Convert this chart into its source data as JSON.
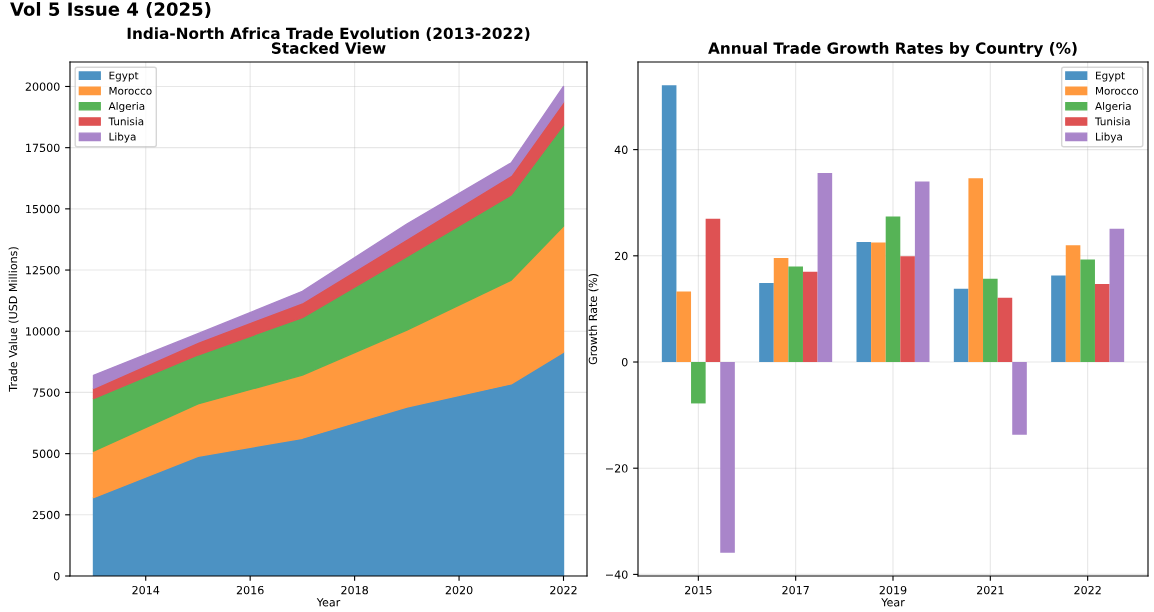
{
  "chart_data": [
    {
      "type": "area",
      "stacked": true,
      "title": "India-North Africa Trade Evolution (2013-2022)\nStacked View",
      "xlabel": "Year",
      "ylabel": "Trade Value (USD Millions)",
      "x": [
        2013,
        2015,
        2017,
        2019,
        2021,
        2022
      ],
      "series": [
        {
          "name": "Egypt",
          "color": "#4c92c3",
          "values": [
            3200,
            4890,
            5630,
            6900,
            7850,
            9150
          ]
        },
        {
          "name": "Morocco",
          "color": "#ff993e",
          "values": [
            1900,
            2140,
            2580,
            3150,
            4240,
            5150
          ]
        },
        {
          "name": "Algeria",
          "color": "#56b356",
          "values": [
            2150,
            2000,
            2350,
            3000,
            3480,
            4130
          ]
        },
        {
          "name": "Tunisia",
          "color": "#de5253",
          "values": [
            420,
            530,
            610,
            720,
            810,
            940
          ]
        },
        {
          "name": "Libya",
          "color": "#a985ca",
          "values": [
            530,
            340,
            460,
            610,
            500,
            630
          ]
        }
      ],
      "xlim": [
        2012.55,
        2022.45
      ],
      "xticks": [
        2014,
        2016,
        2018,
        2020,
        2022
      ],
      "ylim": [
        0,
        21000
      ],
      "yticks": [
        0,
        2500,
        5000,
        7500,
        10000,
        12500,
        15000,
        17500,
        20000
      ],
      "grid": true,
      "legend": "top left",
      "annotations": [
        "Vol 5 Issue 4 (2025)"
      ]
    },
    {
      "type": "bar",
      "title": "Annual Trade Growth Rates by Country (%)",
      "xlabel": "Year",
      "ylabel": "Growth Rate (%)",
      "categories": [
        "2015",
        "2017",
        "2019",
        "2021",
        "2022"
      ],
      "series": [
        {
          "name": "Egypt",
          "color": "#4c92c3",
          "values": [
            52.1,
            14.9,
            22.6,
            13.8,
            16.3
          ]
        },
        {
          "name": "Morocco",
          "color": "#ff993e",
          "values": [
            13.3,
            19.6,
            22.5,
            34.6,
            22.0
          ]
        },
        {
          "name": "Algeria",
          "color": "#56b356",
          "values": [
            -7.8,
            18.0,
            27.4,
            15.7,
            19.3
          ]
        },
        {
          "name": "Tunisia",
          "color": "#de5253",
          "values": [
            27.0,
            17.0,
            19.9,
            12.1,
            14.7
          ]
        },
        {
          "name": "Libya",
          "color": "#a985ca",
          "values": [
            -35.9,
            35.6,
            34.0,
            -13.7,
            25.1
          ]
        }
      ],
      "ylim": [
        -40.3,
        56.5
      ],
      "yticks": [
        {
          "value": -40,
          "label": "−40"
        },
        {
          "value": -20,
          "label": "−20"
        },
        0,
        20,
        40
      ],
      "grid": true,
      "legend": "top right"
    }
  ]
}
